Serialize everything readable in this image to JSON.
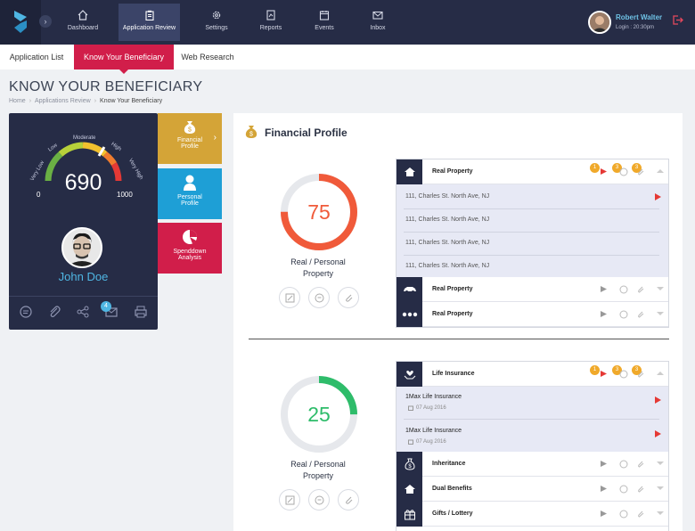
{
  "topnav": {
    "items": [
      {
        "label": "Dashboard",
        "icon": "home-icon"
      },
      {
        "label": "Application Review",
        "icon": "clipboard-icon",
        "active": true
      },
      {
        "label": "Settings",
        "icon": "gear-icon"
      },
      {
        "label": "Reports",
        "icon": "report-icon"
      },
      {
        "label": "Events",
        "icon": "calendar-icon"
      },
      {
        "label": "Inbox",
        "icon": "mail-icon"
      }
    ],
    "user": {
      "name": "Robert Walter",
      "login": "Login : 20:30pm"
    }
  },
  "subnav": {
    "tabs": [
      {
        "label": "Application List"
      },
      {
        "label": "Know Your Beneficiary",
        "active": true
      },
      {
        "label": "Web Research"
      }
    ]
  },
  "page": {
    "title": "KNOW YOUR BENEFICIARY",
    "breadcrumb": [
      "Home",
      "Applications Review",
      "Know Your Beneficiary"
    ]
  },
  "profile": {
    "score": "690",
    "gauge_min": "0",
    "gauge_max": "1000",
    "gauge_labels": [
      "Very Low",
      "Low",
      "Moderate",
      "High",
      "Very High"
    ],
    "name": "John Doe",
    "notification_count": "4"
  },
  "tiles": [
    {
      "label_line1": "Financial",
      "label_line2": "Profile",
      "color": "#d4a437"
    },
    {
      "label_line1": "Personal",
      "label_line2": "Profile",
      "color": "#1e9fd6"
    },
    {
      "label_line1": "Spenddown",
      "label_line2": "Analysis",
      "color": "#d11e4a"
    }
  ],
  "financial": {
    "title": "Financial Profile",
    "ring1": {
      "value": "75",
      "percent": 75,
      "color": "#f05a3a",
      "label_line1": "Real / Personal",
      "label_line2": "Property"
    },
    "ring2": {
      "value": "25",
      "percent": 25,
      "color": "#2ebc6a",
      "label_line1": "Real / Personal",
      "label_line2": "Property"
    },
    "group1": {
      "header": "Real Property",
      "badges": [
        "1",
        "3",
        "3"
      ],
      "addresses": [
        "111, Charles St. North Ave, NJ",
        "111, Charles St. North Ave, NJ",
        "111, Charles St. North Ave, NJ",
        "111, Charles St. North Ave, NJ"
      ],
      "rows": [
        {
          "label": "Real Property",
          "icon": "car-icon"
        },
        {
          "label": "Real Property",
          "icon": "more-icon"
        }
      ]
    },
    "group2": {
      "header": "Life Insurance",
      "badges": [
        "1",
        "3",
        "3"
      ],
      "policies": [
        {
          "name": "Max Life Insurance",
          "prefix": "1",
          "date": "07 Aug 2016"
        },
        {
          "name": "Max Life Insurance",
          "prefix": "1",
          "date": "07 Aug 2016"
        }
      ],
      "rows": [
        {
          "label": "Inheritance",
          "icon": "money-bag-icon"
        },
        {
          "label": "Dual Benefits",
          "icon": "home-icon"
        },
        {
          "label": "Gifts / Lottery",
          "icon": "gift-icon"
        }
      ]
    }
  },
  "colors": {
    "nav": "#262c46",
    "accent": "#d11e4a",
    "blue": "#4fb6e3",
    "badge": "#f0a92a"
  }
}
